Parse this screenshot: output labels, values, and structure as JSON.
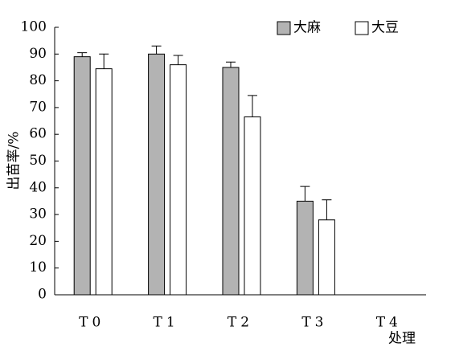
{
  "chart_data": {
    "type": "bar",
    "y_label": "出苗率/%",
    "x_label": "处理",
    "categories": [
      "T0",
      "T1",
      "T2",
      "T3",
      "T4"
    ],
    "series": [
      {
        "name": "大麻",
        "color": "#b3b3b3",
        "values": [
          89,
          90,
          85,
          35,
          0
        ],
        "errors": [
          1.5,
          3,
          2,
          5.5,
          0
        ]
      },
      {
        "name": "大豆",
        "color": "#ffffff",
        "values": [
          84.5,
          86,
          66.5,
          28,
          0
        ],
        "errors": [
          5.5,
          3.5,
          8,
          7.5,
          0
        ]
      }
    ],
    "ylim": [
      0,
      100
    ],
    "yticks": [
      0,
      10,
      20,
      30,
      40,
      50,
      60,
      70,
      80,
      90,
      100
    ],
    "legend": "upper right"
  }
}
